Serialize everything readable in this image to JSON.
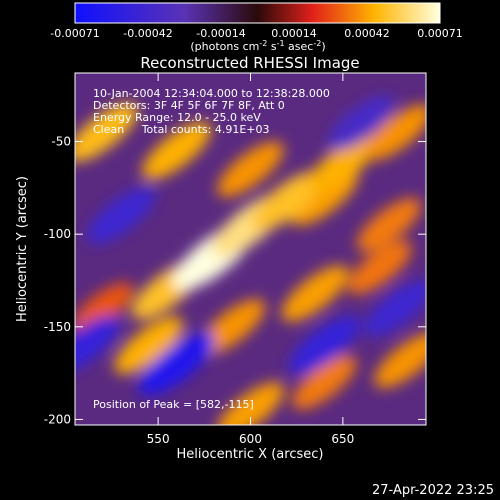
{
  "chart_data": {
    "type": "heatmap",
    "title": "Reconstructed RHESSI Image",
    "xlabel": "Heliocentric X (arcsec)",
    "ylabel": "Heliocentric Y (arcsec)",
    "xlim": [
      505,
      695
    ],
    "ylim": [
      -203,
      -13
    ],
    "xticks": [
      550,
      600,
      650
    ],
    "yticks": [
      -50,
      -100,
      -150,
      -200
    ],
    "grid": false,
    "colorbar": {
      "position": "top",
      "range": [
        -0.00071,
        0.00071
      ],
      "ticks": [
        "-0.00071",
        "-0.00042",
        "-0.00014",
        "0.00014",
        "0.00042",
        "0.00071"
      ],
      "units": "(photons cm",
      "colors": [
        "#1010ff",
        "#5a32b4",
        "#2a0a0a",
        "#e0201a",
        "#ffb400",
        "#ffffe0"
      ]
    },
    "annotations": [
      "10-Jan-2004 12:34:04.000 to 12:38:28.000",
      "Detectors: 3F 4F 5F 6F 7F 8F, Att 0",
      "Energy Range: 12.0 - 25.0 keV",
      "Clean     Total counts: 4.91E+03"
    ],
    "peak_label": "Position of Peak = [582,-115]",
    "peak": [
      582,
      -115
    ],
    "bands": [
      {
        "x": 520,
        "y": -45,
        "value": 0.00048
      },
      {
        "x": 560,
        "y": -55,
        "value": 0.00045
      },
      {
        "x": 600,
        "y": -65,
        "value": 0.0004
      },
      {
        "x": 640,
        "y": -80,
        "value": 0.00042
      },
      {
        "x": 675,
        "y": -95,
        "value": 0.00036
      },
      {
        "x": 520,
        "y": -140,
        "value": 0.0003
      },
      {
        "x": 555,
        "y": -130,
        "value": 0.0005
      },
      {
        "x": 580,
        "y": -112,
        "value": 0.00071
      },
      {
        "x": 600,
        "y": -95,
        "value": 0.0006
      },
      {
        "x": 620,
        "y": -82,
        "value": 0.0005
      },
      {
        "x": 650,
        "y": -62,
        "value": 0.00045
      },
      {
        "x": 680,
        "y": -45,
        "value": 0.0004
      },
      {
        "x": 545,
        "y": -160,
        "value": 0.00045
      },
      {
        "x": 590,
        "y": -150,
        "value": 0.0004
      },
      {
        "x": 635,
        "y": -132,
        "value": 0.00042
      },
      {
        "x": 670,
        "y": -118,
        "value": 0.00035
      },
      {
        "x": 600,
        "y": -195,
        "value": 0.00042
      },
      {
        "x": 640,
        "y": -180,
        "value": 0.00036
      },
      {
        "x": 685,
        "y": -168,
        "value": 0.0004
      },
      {
        "x": 530,
        "y": -90,
        "value": -0.00045
      },
      {
        "x": 560,
        "y": -170,
        "value": -0.0006
      },
      {
        "x": 640,
        "y": -160,
        "value": -0.0005
      },
      {
        "x": 680,
        "y": -140,
        "value": -0.00045
      },
      {
        "x": 660,
        "y": -40,
        "value": -0.0004
      },
      {
        "x": 510,
        "y": -160,
        "value": -0.0005
      }
    ]
  },
  "footer": {
    "timestamp": "27-Apr-2022 23:25"
  }
}
